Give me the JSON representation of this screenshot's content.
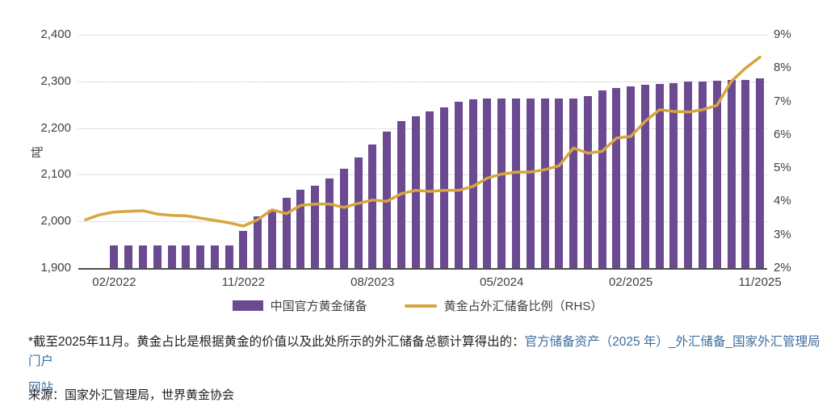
{
  "chart_data": {
    "type": "bar",
    "combo": "bar+line",
    "title": "",
    "categories": [
      "12/2021",
      "01/2022",
      "02/2022",
      "03/2022",
      "04/2022",
      "05/2022",
      "06/2022",
      "07/2022",
      "08/2022",
      "09/2022",
      "10/2022",
      "11/2022",
      "12/2022",
      "01/2023",
      "02/2023",
      "03/2023",
      "04/2023",
      "05/2023",
      "06/2023",
      "07/2023",
      "08/2023",
      "09/2023",
      "10/2023",
      "11/2023",
      "12/2023",
      "01/2024",
      "02/2024",
      "03/2024",
      "04/2024",
      "05/2024",
      "06/2024",
      "07/2024",
      "08/2024",
      "09/2024",
      "10/2024",
      "11/2024",
      "12/2024",
      "01/2025",
      "02/2025",
      "03/2025",
      "04/2025",
      "05/2025",
      "06/2025",
      "07/2025",
      "08/2025",
      "09/2025",
      "10/2025",
      "11/2025"
    ],
    "series": [
      {
        "name": "中国官方黄金储备",
        "type": "bar",
        "axis": "left",
        "unit": "吨",
        "color": "#6b4a91",
        "values": [
          null,
          null,
          1948,
          1948,
          1948,
          1948,
          1948,
          1948,
          1948,
          1948,
          1948,
          1980,
          2010,
          2025,
          2050,
          2068,
          2076,
          2092,
          2113,
          2137,
          2165,
          2192,
          2215,
          2226,
          2235,
          2245,
          2257,
          2262,
          2264,
          2264,
          2264,
          2264,
          2264,
          2264,
          2264,
          2269,
          2280,
          2285,
          2290,
          2292,
          2295,
          2296,
          2299,
          2300,
          2302,
          2303,
          2304,
          2306
        ]
      },
      {
        "name": "黄金占外汇储备比例（RHS）",
        "type": "line",
        "axis": "right",
        "unit": "%",
        "color": "#d7a53f",
        "values": [
          3.45,
          3.6,
          3.68,
          3.7,
          3.72,
          3.62,
          3.58,
          3.57,
          3.5,
          3.43,
          3.36,
          3.26,
          3.45,
          3.75,
          3.63,
          3.88,
          3.92,
          3.92,
          3.82,
          3.94,
          4.04,
          4.0,
          4.23,
          4.33,
          4.3,
          4.33,
          4.33,
          4.45,
          4.7,
          4.82,
          4.88,
          4.88,
          4.95,
          5.07,
          5.6,
          5.45,
          5.5,
          5.9,
          5.95,
          6.4,
          6.75,
          6.7,
          6.68,
          6.75,
          6.88,
          7.6,
          8.0,
          8.33
        ]
      }
    ],
    "left_axis": {
      "label": "吨",
      "min": 1900,
      "max": 2400,
      "step": 100,
      "tick_labels": [
        "2,400",
        "2,300",
        "2,200",
        "2,100",
        "2,000",
        "1,900"
      ]
    },
    "right_axis": {
      "min": 2,
      "max": 9,
      "step": 1,
      "tick_labels": [
        "9%",
        "8%",
        "7%",
        "6%",
        "5%",
        "4%",
        "3%",
        "2%"
      ]
    },
    "x_tick_labels": [
      "02/2022",
      "11/2022",
      "08/2023",
      "05/2024",
      "02/2025",
      "11/2025"
    ],
    "x_tick_indices": [
      2,
      11,
      20,
      29,
      38,
      47
    ],
    "grid": "horizontal-dotted",
    "legend_position": "bottom-center"
  },
  "legend": {
    "bar_label": "中国官方黄金储备",
    "line_label": "黄金占外汇储备比例（RHS）"
  },
  "footnote": {
    "note": "*截至2025年11月。黄金占比是根据黄金的价值以及此处所示的外汇储备总额计算得出的：",
    "link_line1": "官方储备资产（2025 年）_外汇储备_国家外汇管理局门户",
    "link_line2": "网站",
    "source": "来源：国家外汇管理局，世界黄金协会"
  },
  "colors": {
    "bar": "#6b4a91",
    "line": "#d7a53f",
    "grid": "#c2c2c2",
    "axis_text": "#404040",
    "link": "#3c6e9c",
    "body_text": "#1f1f1f"
  }
}
